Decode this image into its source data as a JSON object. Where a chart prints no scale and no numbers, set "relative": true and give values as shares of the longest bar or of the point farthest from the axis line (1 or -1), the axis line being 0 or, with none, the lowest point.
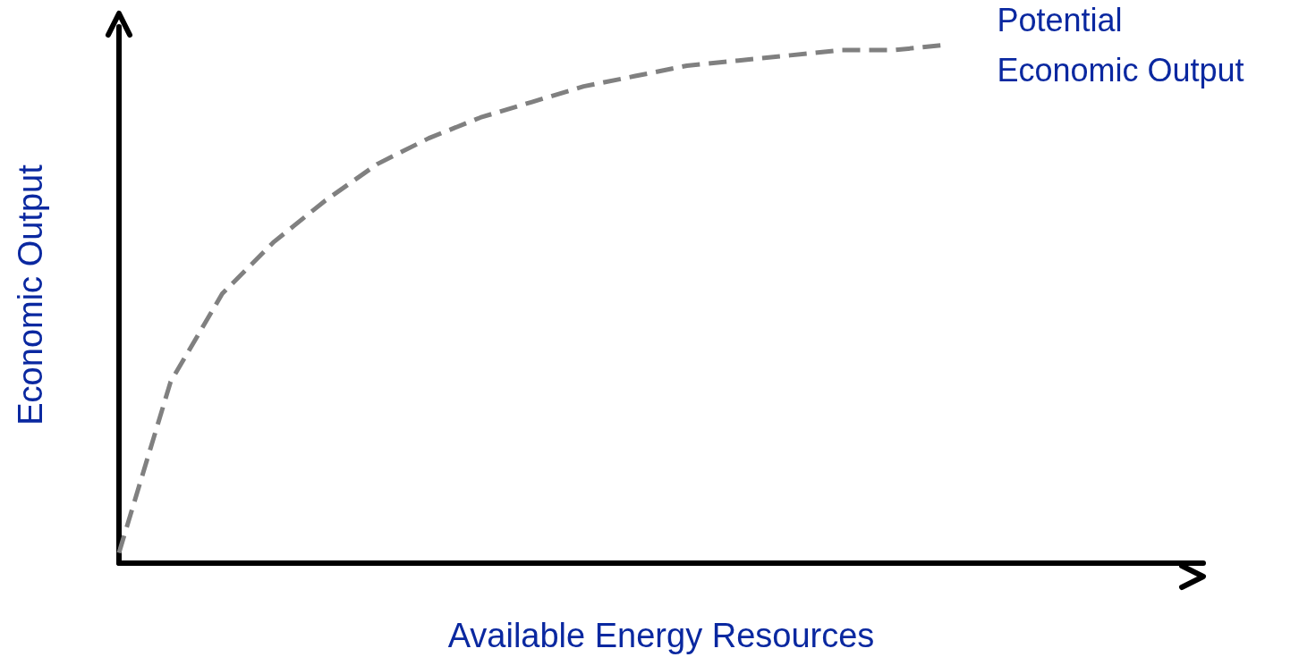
{
  "chart_data": {
    "type": "line",
    "relative": true,
    "xlabel": "Available Energy Resources",
    "ylabel": "Economic Output",
    "categories": [
      null,
      null,
      null,
      null,
      null,
      null,
      null,
      null,
      null,
      null,
      null,
      null,
      null,
      null,
      null,
      null,
      null,
      null,
      null,
      null,
      null,
      null
    ],
    "series": [
      {
        "name": "Potential Economic Output",
        "color": "#808080",
        "values": [
          0.02,
          0.35,
          0.52,
          0.62,
          0.7,
          0.77,
          0.82,
          0.86,
          0.89,
          0.92,
          0.94,
          0.96,
          0.97,
          0.98,
          0.99,
          0.99,
          1,
          null,
          null,
          null,
          null,
          null
        ]
      }
    ],
    "line_style": "dashed",
    "marker": "none",
    "grid": false,
    "legend": false
  }
}
